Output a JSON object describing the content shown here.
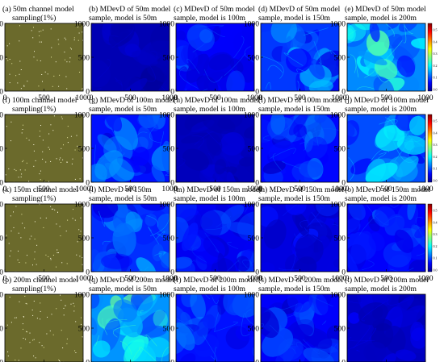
{
  "chart_data": {
    "type": "heatmap",
    "colormap": [
      "#00008f",
      "#0000ff",
      "#0080ff",
      "#00ffff",
      "#80ff80",
      "#ffff00",
      "#ff8000",
      "#ff0000",
      "#800000"
    ],
    "colorbar_ticks": [
      "0.5",
      "0.4",
      "0.3",
      "0.2",
      "0.1",
      "0.0"
    ],
    "sampling_background": "#6b6a2c",
    "rows": [
      {
        "name": "50m",
        "panels": [
          {
            "kind": "sampling",
            "title1": "(a) 50m channel model",
            "title2": "sampling(1%)",
            "xticks": [
              "0",
              "500",
              "1000"
            ],
            "yticks": [
              "1000",
              "500",
              "0"
            ]
          },
          {
            "kind": "mdevd",
            "title1": "(b) MDevD of 50m model",
            "title2": "sample, model is 50m",
            "level": 0.04,
            "patchiness": 0.02,
            "xticks": [
              "0",
              "500",
              "1000"
            ],
            "yticks": [
              "1000",
              "500",
              "0"
            ]
          },
          {
            "kind": "mdevd",
            "title1": "(c) MDevD of 50m model",
            "title2": "sample, model is 100m",
            "level": 0.12,
            "patchiness": 0.06,
            "xticks": [
              "0",
              "500",
              "1000"
            ],
            "yticks": [
              "1000",
              "500",
              "0"
            ]
          },
          {
            "kind": "mdevd",
            "title1": "(d) MDevD of 50m model",
            "title2": "sample, model is 150m",
            "level": 0.18,
            "patchiness": 0.08,
            "xticks": [
              "0",
              "500",
              "1000"
            ],
            "yticks": [
              "1000",
              "500",
              "0"
            ]
          },
          {
            "kind": "mdevd",
            "title1": "(e) MDevD of 50m model",
            "title2": "sample, model is 200m",
            "level": 0.26,
            "patchiness": 0.1,
            "colorbar": true,
            "xticks": [
              "0",
              "500",
              "1000"
            ],
            "yticks": [
              "1000",
              "500",
              "0"
            ]
          }
        ]
      },
      {
        "name": "100m",
        "panels": [
          {
            "kind": "sampling",
            "title1": "(f) 100m channel model",
            "title2": "sampling(1%)",
            "xticks": [
              "0",
              "500",
              "1000"
            ],
            "yticks": [
              "1000",
              "500",
              "0"
            ]
          },
          {
            "kind": "mdevd",
            "title1": "(g) MDevD of 100m model",
            "title2": "sample, model is 50m",
            "level": 0.14,
            "patchiness": 0.07,
            "xticks": [
              "0",
              "500",
              "1000"
            ],
            "yticks": [
              "1000",
              "500",
              "0"
            ]
          },
          {
            "kind": "mdevd",
            "title1": "(h) MDevD of 100m model",
            "title2": "sample, model is 100m",
            "level": 0.05,
            "patchiness": 0.02,
            "xticks": [
              "0",
              "500",
              "1000"
            ],
            "yticks": [
              "1000",
              "500",
              "0"
            ]
          },
          {
            "kind": "mdevd",
            "title1": "(i) MDevD of 100m model",
            "title2": "sample, model is 150m",
            "level": 0.13,
            "patchiness": 0.06,
            "xticks": [
              "0",
              "500",
              "1000"
            ],
            "yticks": [
              "1000",
              "500",
              "0"
            ]
          },
          {
            "kind": "mdevd",
            "title1": "(j) MDevD of 100m model",
            "title2": "sample, model is 200m",
            "level": 0.2,
            "patchiness": 0.09,
            "colorbar": true,
            "xticks": [
              "0",
              "500",
              "1000"
            ],
            "yticks": [
              "1000",
              "500",
              "0"
            ]
          }
        ]
      },
      {
        "name": "150m",
        "panels": [
          {
            "kind": "sampling",
            "title1": "(k) 150m channel model",
            "title2": "sampling(1%)",
            "xticks": [
              "0",
              "500",
              "1000"
            ],
            "yticks": [
              "1000",
              "500",
              "0"
            ]
          },
          {
            "kind": "mdevd",
            "title1": "(l) MDevD of 150m",
            "title2": "sample, model is 50m",
            "level": 0.17,
            "patchiness": 0.08,
            "xticks": [
              "0",
              "500",
              "1000"
            ],
            "yticks": [
              "1000",
              "500",
              "0"
            ]
          },
          {
            "kind": "mdevd",
            "title1": "(m) MDevD of 150m model",
            "title2": "sample, model is 100m",
            "level": 0.11,
            "patchiness": 0.05,
            "xticks": [
              "0",
              "500",
              "1000"
            ],
            "yticks": [
              "1000",
              "500",
              "0"
            ]
          },
          {
            "kind": "mdevd",
            "title1": "(n) MDevD of 150m model",
            "title2": "sample, model is 150m",
            "level": 0.09,
            "patchiness": 0.04,
            "xticks": [
              "0",
              "500",
              "1000"
            ],
            "yticks": [
              "1000",
              "500",
              "0"
            ]
          },
          {
            "kind": "mdevd",
            "title1": "(o) MDevD of 150m model",
            "title2": "sample, model is 200m",
            "level": 0.12,
            "patchiness": 0.05,
            "colorbar": true,
            "xticks": [
              "0",
              "500",
              "1000"
            ],
            "yticks": [
              "1000",
              "500",
              "0"
            ]
          }
        ]
      },
      {
        "name": "200m",
        "panels": [
          {
            "kind": "sampling",
            "title1": "(p) 200m channel model",
            "title2": "sampling(1%)",
            "xticks": [
              "0",
              "500",
              "1000"
            ],
            "yticks": [
              "1000",
              "500",
              "0"
            ]
          },
          {
            "kind": "mdevd",
            "title1": "(q) MDevD of 200m model",
            "title2": "sample, model is 50m",
            "level": 0.27,
            "patchiness": 0.11,
            "xticks": [
              "0",
              "500",
              "1000"
            ],
            "yticks": [
              "1000",
              "500",
              "0"
            ]
          },
          {
            "kind": "mdevd",
            "title1": "(r) MDevD of 200m model",
            "title2": "sample, model is 100m",
            "level": 0.14,
            "patchiness": 0.06,
            "xticks": [
              "0",
              "500",
              "1000"
            ],
            "yticks": [
              "1000",
              "500",
              "0"
            ]
          },
          {
            "kind": "mdevd",
            "title1": "(s) MDevD of 200m model",
            "title2": "sample, model is 150m",
            "level": 0.12,
            "patchiness": 0.05,
            "xticks": [
              "0",
              "500",
              "1000"
            ],
            "yticks": [
              "1000",
              "500",
              "0"
            ]
          },
          {
            "kind": "mdevd",
            "title1": "(t) MDevD of 200m model",
            "title2": "sample, model is 200m",
            "level": 0.06,
            "patchiness": 0.03,
            "xticks": [
              "0",
              "500",
              "1000"
            ],
            "yticks": [
              "1000",
              "500",
              "0"
            ]
          }
        ]
      }
    ]
  }
}
